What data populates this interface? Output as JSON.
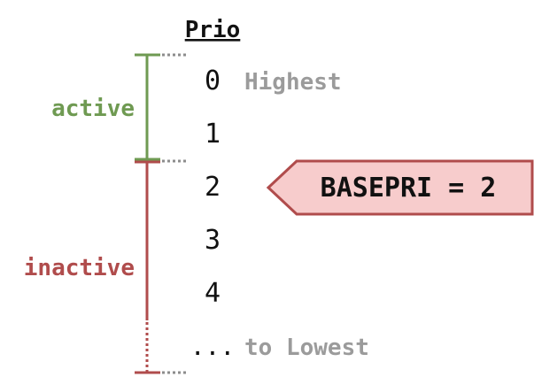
{
  "header": {
    "title": "Prio"
  },
  "priorities": [
    {
      "value": "0",
      "note": "Highest"
    },
    {
      "value": "1",
      "note": ""
    },
    {
      "value": "2",
      "note": ""
    },
    {
      "value": "3",
      "note": ""
    },
    {
      "value": "4",
      "note": ""
    },
    {
      "value": "...",
      "note": "to Lowest"
    }
  ],
  "groups": {
    "active": {
      "label": "active",
      "color": "#6f9a52"
    },
    "inactive": {
      "label": "inactive",
      "color": "#b04c4c"
    }
  },
  "callout": {
    "label": "BASEPRI = 2",
    "fill": "#f7cccc",
    "stroke": "#b04c4c",
    "points_to": "2"
  },
  "colors": {
    "note_text": "#9b9b9b",
    "dotted_separator": "#8c8c8c",
    "text": "#111111"
  }
}
